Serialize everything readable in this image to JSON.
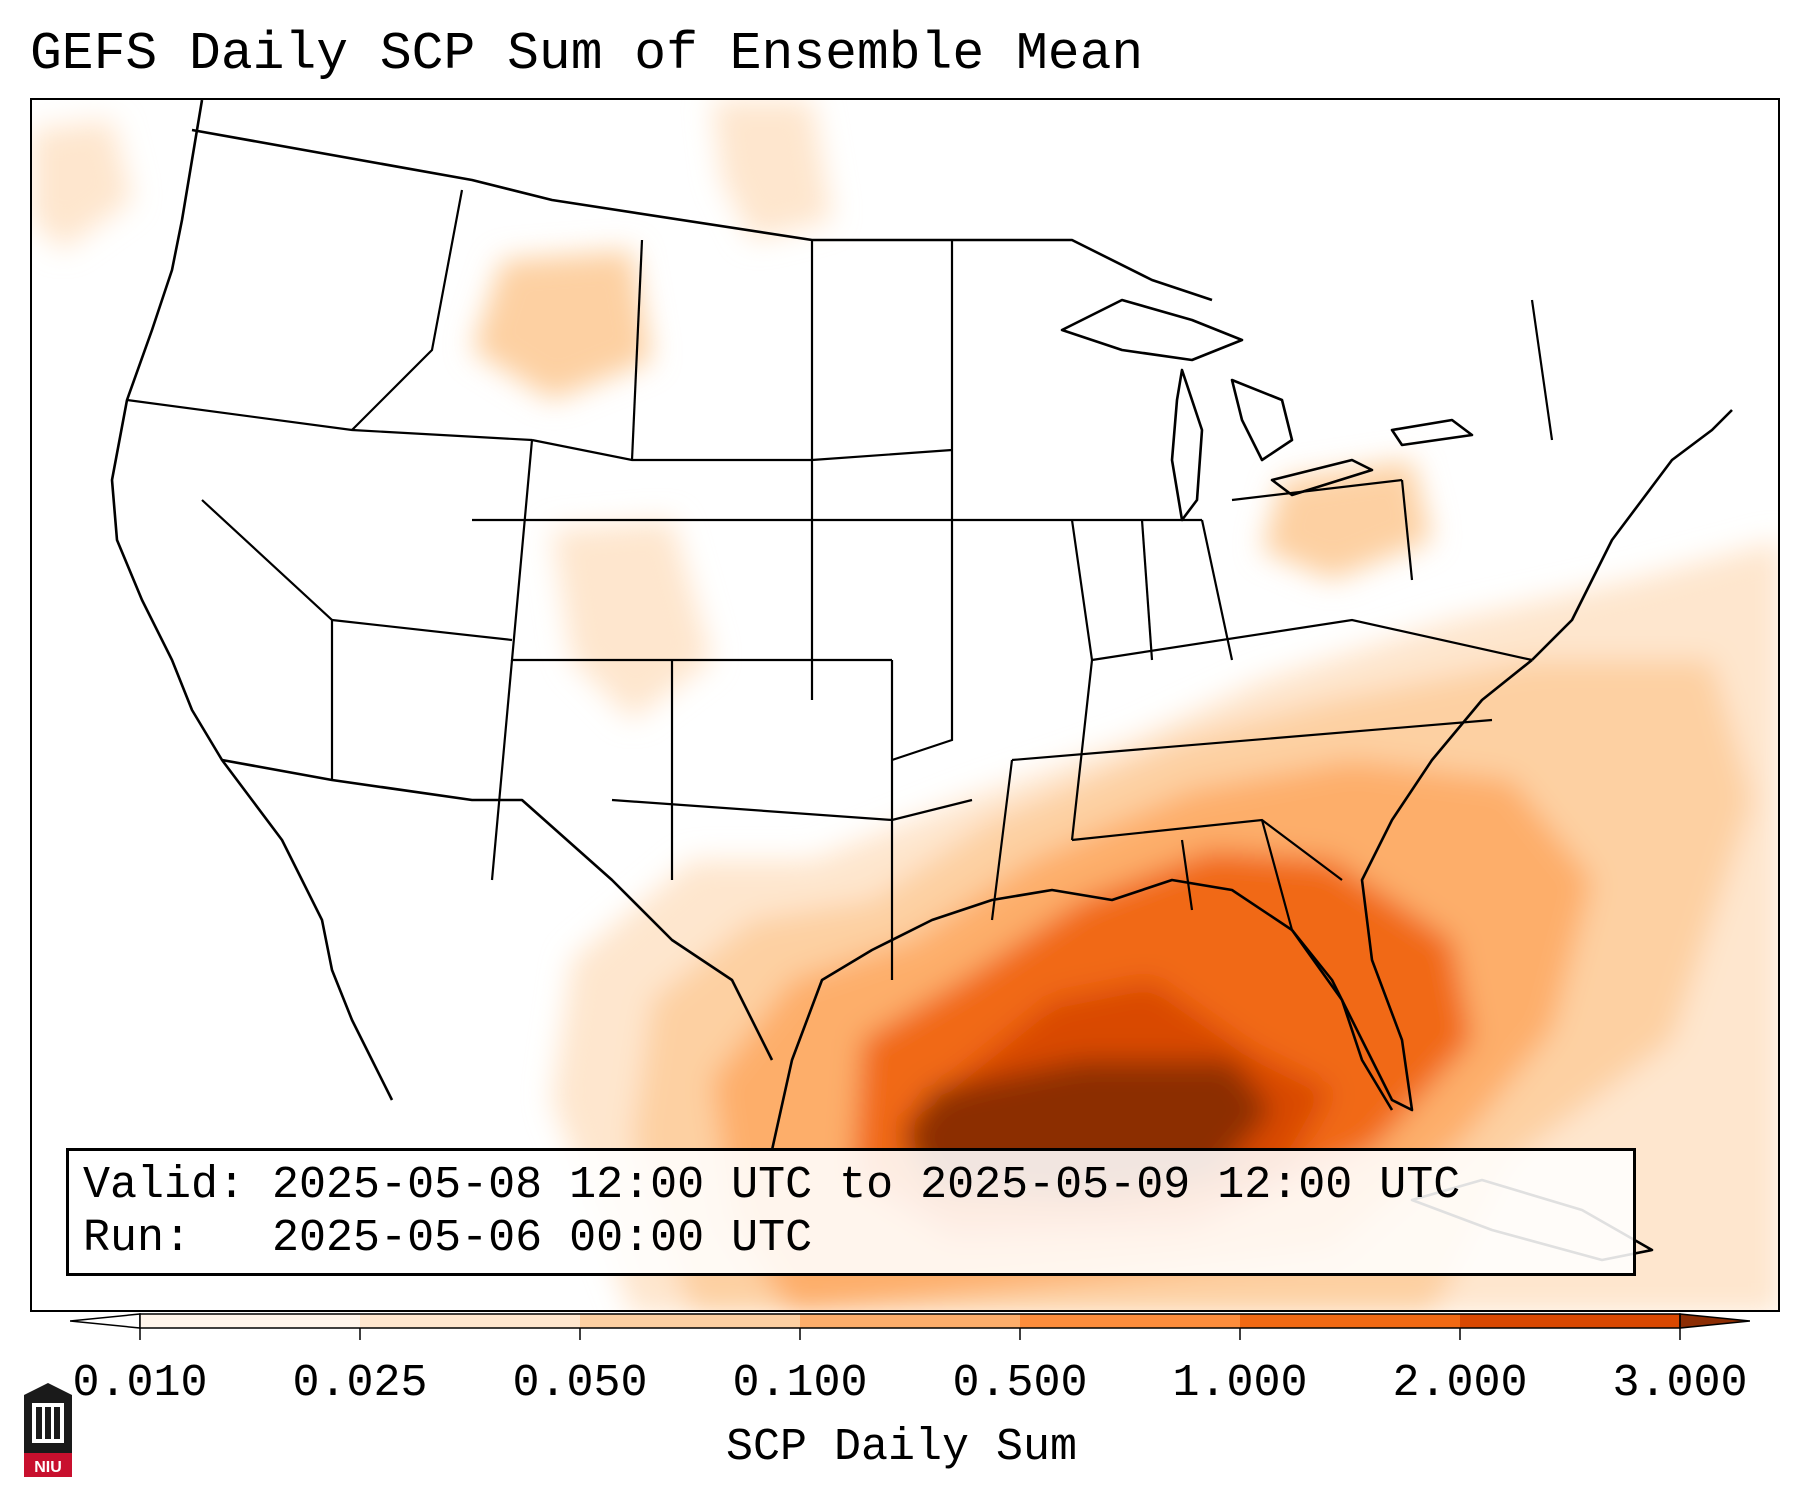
{
  "title": "GEFS Daily SCP Sum of Ensemble Mean",
  "info": {
    "valid_label": "Valid:",
    "valid_value": "2025-05-08 12:00 UTC to 2025-05-09 12:00 UTC",
    "run_label": "Run:",
    "run_value": "2025-05-06 00:00 UTC"
  },
  "colorbar": {
    "label": "SCP Daily Sum",
    "ticks": [
      "0.010",
      "0.025",
      "0.050",
      "0.100",
      "0.500",
      "1.000",
      "2.000",
      "3.000"
    ],
    "colors": [
      "#fff5eb",
      "#fee6ce",
      "#fdd0a2",
      "#fdae6b",
      "#fd8d3c",
      "#f16913",
      "#d94801",
      "#8c2d04"
    ]
  },
  "logo": {
    "text": "NIU",
    "color": "#c8102e"
  }
}
